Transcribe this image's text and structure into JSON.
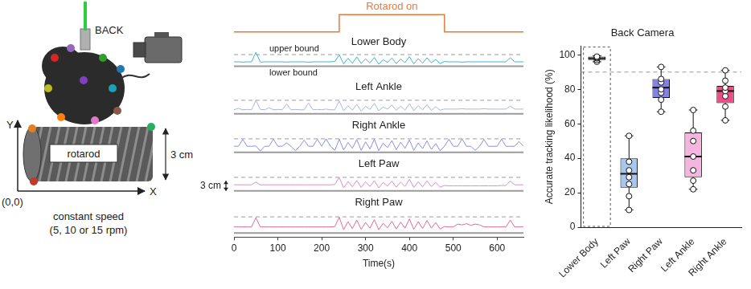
{
  "diagram": {
    "camera_label": "BACK",
    "cylinder_label": "rotarod",
    "height_label": "3 cm",
    "y_axis_label": "Y",
    "x_axis_label": "X",
    "origin_label": "(0,0)",
    "speed_label": "constant speed",
    "speed_values": "(5, 10 or 15 rpm)"
  },
  "chart_data": [
    {
      "type": "line",
      "x_label": "Time(s)",
      "x": [
        0,
        10,
        20,
        30,
        40,
        50,
        60,
        70,
        80,
        90,
        100,
        110,
        120,
        130,
        140,
        150,
        160,
        170,
        180,
        190,
        200,
        210,
        220,
        230,
        240,
        250,
        260,
        270,
        280,
        290,
        300,
        310,
        320,
        330,
        340,
        350,
        360,
        370,
        380,
        390,
        400,
        410,
        420,
        430,
        440,
        450,
        460,
        470,
        480,
        490,
        500,
        510,
        520,
        530,
        540,
        550,
        560,
        570,
        580,
        590,
        600,
        610,
        620,
        630,
        640,
        650,
        660
      ],
      "xlim": [
        0,
        660
      ],
      "xticks": [
        0,
        100,
        200,
        300,
        400,
        500,
        600
      ],
      "ylim": [
        -1,
        5.5
      ],
      "tick_labels": "x",
      "grid": false,
      "rotarod_on": {
        "label": "Rotarod on",
        "start": 240,
        "end": 480,
        "color": "#e8783c"
      },
      "upper_bound": {
        "label": "upper bound",
        "value": 4
      },
      "lower_bound": {
        "label": "lower bound",
        "value": 0
      },
      "scale_bar": {
        "label": "3 cm",
        "value": 3
      },
      "series": [
        {
          "name": "Lower Body",
          "color": "#3bb3d6",
          "values": [
            1.5,
            1.5,
            1.4,
            1.5,
            1.5,
            4.8,
            1.4,
            1.5,
            1.5,
            1.5,
            1.5,
            1.5,
            1.4,
            1.5,
            1.5,
            1.5,
            1.5,
            1.4,
            1.5,
            1.5,
            1.5,
            1.5,
            1.5,
            1.6,
            3.9,
            0.8,
            2.7,
            1.0,
            3.2,
            0.9,
            2.5,
            1.1,
            3.0,
            0.7,
            2.2,
            1.3,
            2.8,
            0.9,
            2.4,
            1.2,
            3.3,
            0.8,
            2.6,
            1.0,
            2.9,
            1.2,
            2.3,
            0.9,
            1.6,
            1.5,
            1.5,
            1.5,
            1.4,
            1.5,
            1.5,
            1.5,
            1.5,
            1.5,
            1.5,
            1.5,
            1.5,
            1.5,
            1.5,
            2.9,
            1.5,
            1.5,
            1.5
          ]
        },
        {
          "name": "Left Ankle",
          "color": "#a9b6e3",
          "values": [
            1.2,
            1.6,
            1.2,
            1.3,
            1.2,
            4.0,
            1.3,
            1.2,
            1.8,
            1.2,
            1.3,
            1.2,
            2.9,
            1.2,
            1.3,
            1.2,
            1.2,
            3.2,
            1.2,
            1.3,
            1.2,
            1.4,
            1.2,
            1.2,
            3.8,
            0.9,
            2.4,
            1.1,
            2.8,
            0.8,
            2.2,
            1.3,
            3.1,
            0.9,
            2.0,
            1.4,
            2.6,
            1.0,
            2.3,
            1.1,
            3.0,
            0.9,
            2.4,
            1.2,
            2.7,
            1.0,
            2.1,
            1.1,
            1.4,
            1.4,
            1.4,
            1.4,
            1.5,
            1.4,
            1.4,
            1.4,
            1.4,
            1.5,
            1.4,
            1.4,
            1.4,
            1.4,
            1.4,
            2.3,
            1.4,
            1.4,
            1.4
          ]
        },
        {
          "name": "Right Ankle",
          "color": "#8a8fe6",
          "values": [
            1.8,
            1.8,
            3.8,
            1.8,
            1.8,
            1.9,
            0.4,
            1.8,
            1.8,
            3.9,
            1.8,
            1.8,
            2.8,
            1.8,
            0.5,
            1.8,
            3.6,
            1.8,
            1.8,
            3.9,
            1.8,
            4.0,
            1.8,
            0.6,
            3.9,
            0.7,
            2.9,
            1.2,
            3.8,
            0.6,
            3.1,
            1.0,
            3.9,
            0.5,
            2.7,
            1.4,
            3.5,
            0.8,
            3.0,
            1.2,
            3.7,
            0.6,
            2.8,
            1.1,
            3.4,
            0.9,
            2.6,
            0.5,
            1.8,
            3.9,
            1.8,
            1.8,
            4.0,
            1.8,
            1.8,
            0.6,
            1.8,
            3.8,
            1.8,
            1.8,
            1.8,
            3.9,
            1.8,
            1.8,
            1.8,
            3.2,
            1.8
          ]
        },
        {
          "name": "Left Paw",
          "color": "#d88fc9",
          "values": [
            1.8,
            1.8,
            1.8,
            1.8,
            1.8,
            2.6,
            1.8,
            1.8,
            1.8,
            1.8,
            1.8,
            1.8,
            1.8,
            1.8,
            1.8,
            1.8,
            1.8,
            1.8,
            1.8,
            1.8,
            1.8,
            1.8,
            1.8,
            1.9,
            4.0,
            0.9,
            2.8,
            1.2,
            3.1,
            1.0,
            2.7,
            1.3,
            3.0,
            0.9,
            2.5,
            1.4,
            2.9,
            1.1,
            2.6,
            1.3,
            3.4,
            1.0,
            2.7,
            1.2,
            3.0,
            1.3,
            2.5,
            1.1,
            1.6,
            1.5,
            1.5,
            1.5,
            1.5,
            1.5,
            1.5,
            1.5,
            1.5,
            1.5,
            1.5,
            1.5,
            1.5,
            1.6,
            1.6,
            2.9,
            1.8,
            1.8,
            1.8
          ]
        },
        {
          "name": "Right Paw",
          "color": "#e3679f",
          "values": [
            1.5,
            1.5,
            1.5,
            1.5,
            1.5,
            3.8,
            1.5,
            1.5,
            1.5,
            1.5,
            1.5,
            1.5,
            1.5,
            1.5,
            1.5,
            1.5,
            1.5,
            1.5,
            1.5,
            1.5,
            1.5,
            1.5,
            1.5,
            1.6,
            3.9,
            0.8,
            2.8,
            1.1,
            3.2,
            0.9,
            2.6,
            1.2,
            3.3,
            0.8,
            2.4,
            1.3,
            2.9,
            1.0,
            2.7,
            1.2,
            3.5,
            0.9,
            2.8,
            1.1,
            3.1,
            1.2,
            2.6,
            1.0,
            1.6,
            1.5,
            1.5,
            2.2,
            2.0,
            2.3,
            1.9,
            2.2,
            2.0,
            1.5,
            1.5,
            1.5,
            1.5,
            1.5,
            1.5,
            3.2,
            1.5,
            1.5,
            1.5
          ]
        }
      ]
    },
    {
      "type": "box",
      "title": "Back Camera",
      "y_label": "Accurate tracking likelihood (%)",
      "categories": [
        "Lower Body",
        "Left Paw",
        "Right Paw",
        "Left Ankle",
        "Right Ankle"
      ],
      "colors": [
        "#ffffff",
        "#a9c6ee",
        "#8480e8",
        "#f4b6de",
        "#ec4d86"
      ],
      "boxes": [
        {
          "min": 96,
          "q1": 97,
          "median": 98,
          "q3": 99,
          "max": 99.5,
          "points": [
            96,
            97,
            98,
            98.5,
            99
          ]
        },
        {
          "min": 10,
          "q1": 23,
          "median": 31,
          "q3": 40,
          "max": 53,
          "points": [
            10,
            18,
            25,
            29,
            33,
            38,
            53
          ]
        },
        {
          "min": 67,
          "q1": 75,
          "median": 81,
          "q3": 86,
          "max": 93,
          "points": [
            67,
            74,
            78,
            80,
            84,
            86,
            93
          ]
        },
        {
          "min": 22,
          "q1": 29,
          "median": 41,
          "q3": 55,
          "max": 68,
          "points": [
            22,
            27,
            33,
            41,
            50,
            56,
            68
          ]
        },
        {
          "min": 62,
          "q1": 72,
          "median": 79,
          "q3": 82,
          "max": 91,
          "points": [
            62,
            70,
            76,
            79,
            81,
            85,
            91
          ]
        }
      ],
      "reference_line": 90,
      "ylim": [
        0,
        105
      ],
      "yticks": [
        0,
        20,
        40,
        60,
        80,
        100
      ],
      "grid": false
    }
  ]
}
